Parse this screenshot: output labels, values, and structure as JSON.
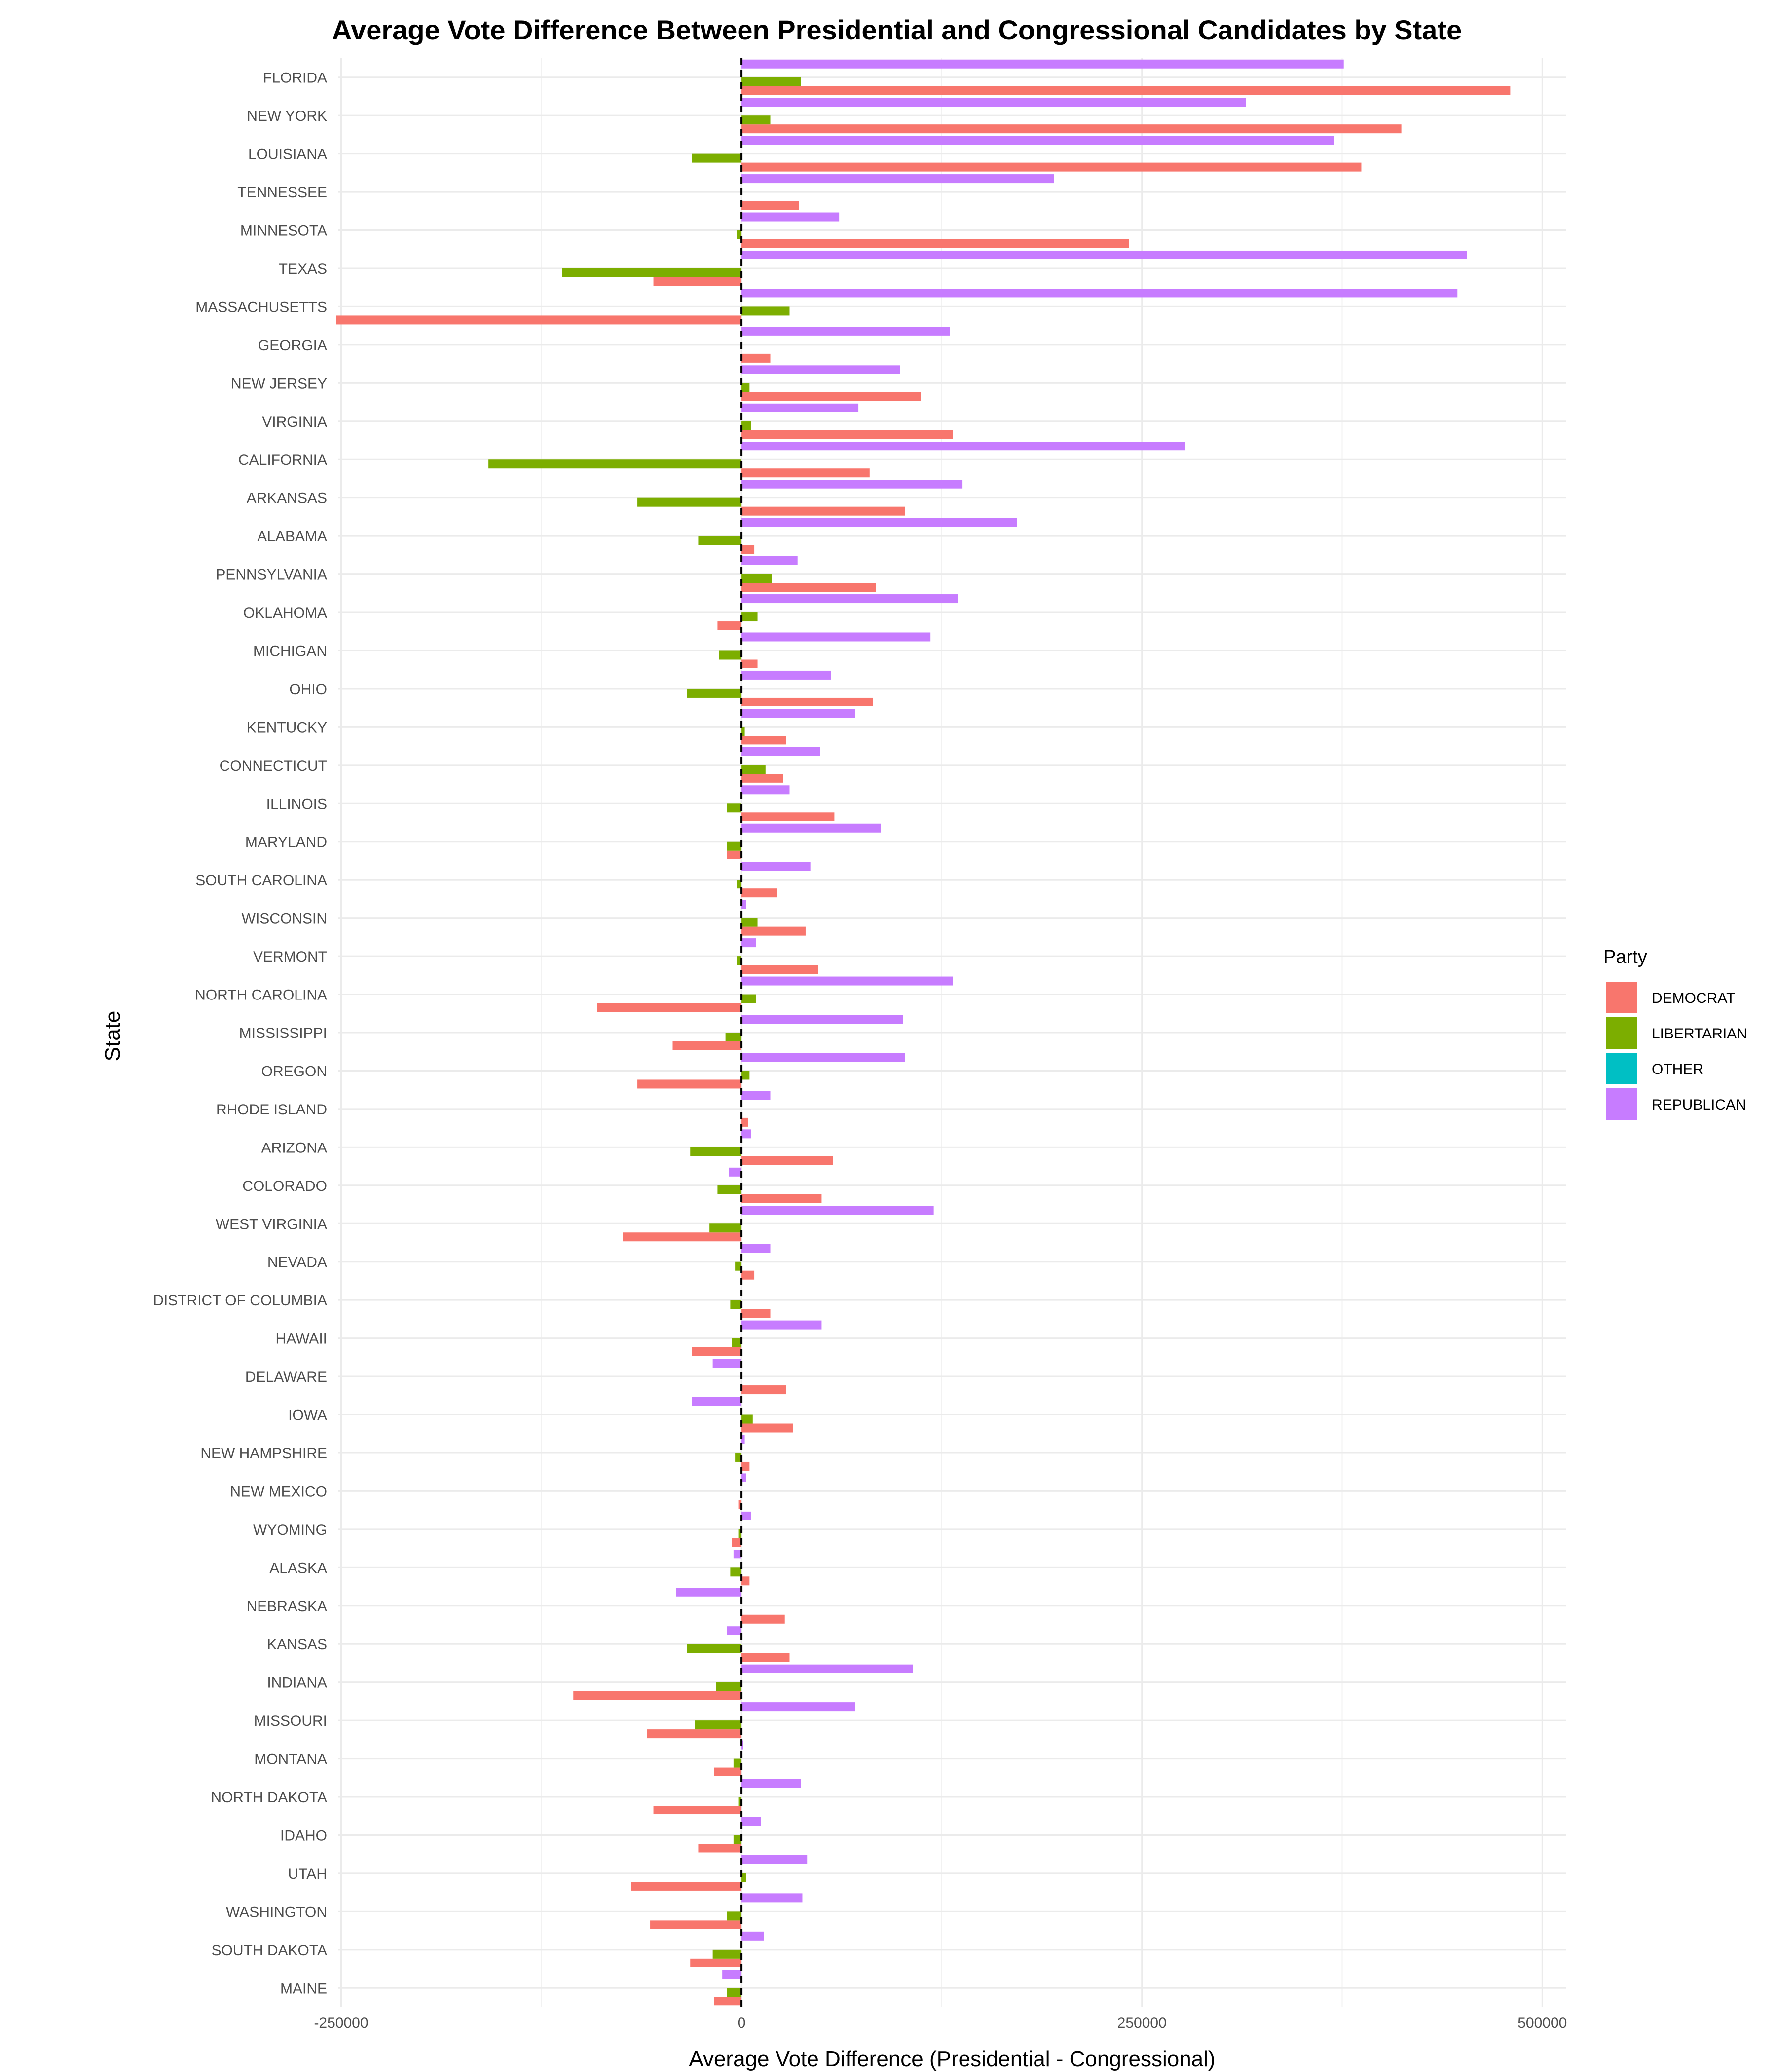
{
  "chart_data": {
    "type": "bar",
    "orientation": "horizontal",
    "title": "Average Vote Difference Between Presidential and Congressional Candidates by State",
    "xlabel": "Average Vote Difference (Presidential - Congressional)",
    "ylabel": "State",
    "xlim": [
      -252000,
      515000
    ],
    "x_ticks": [
      -250000,
      0,
      250000,
      500000
    ],
    "x_tick_labels": [
      "-250000",
      "0",
      "250000",
      "500000"
    ],
    "grid": true,
    "reference_line": {
      "x": 0,
      "style": "dashed"
    },
    "legend": {
      "title": "Party",
      "placement": "right"
    },
    "categories": [
      "FLORIDA",
      "NEW YORK",
      "LOUISIANA",
      "TENNESSEE",
      "MINNESOTA",
      "TEXAS",
      "MASSACHUSETTS",
      "GEORGIA",
      "NEW JERSEY",
      "VIRGINIA",
      "CALIFORNIA",
      "ARKANSAS",
      "ALABAMA",
      "PENNSYLVANIA",
      "OKLAHOMA",
      "MICHIGAN",
      "OHIO",
      "KENTUCKY",
      "CONNECTICUT",
      "ILLINOIS",
      "MARYLAND",
      "SOUTH CAROLINA",
      "WISCONSIN",
      "VERMONT",
      "NORTH CAROLINA",
      "MISSISSIPPI",
      "OREGON",
      "RHODE ISLAND",
      "ARIZONA",
      "COLORADO",
      "WEST VIRGINIA",
      "NEVADA",
      "DISTRICT OF COLUMBIA",
      "HAWAII",
      "DELAWARE",
      "IOWA",
      "NEW HAMPSHIRE",
      "NEW MEXICO",
      "WYOMING",
      "ALASKA",
      "NEBRASKA",
      "KANSAS",
      "INDIANA",
      "MISSOURI",
      "MONTANA",
      "NORTH DAKOTA",
      "IDAHO",
      "UTAH",
      "WASHINGTON",
      "SOUTH DAKOTA",
      "MAINE"
    ],
    "series": [
      {
        "name": "DEMOCRAT",
        "color": "#F8766D",
        "values": [
          480000,
          412000,
          387000,
          36000,
          242000,
          -55000,
          -253000,
          18000,
          112000,
          132000,
          80000,
          102000,
          8000,
          84000,
          -15000,
          10000,
          82000,
          28000,
          26000,
          58000,
          -9000,
          22000,
          40000,
          48000,
          -90000,
          -43000,
          -65000,
          4000,
          57000,
          50000,
          -74000,
          8000,
          18000,
          -31000,
          28000,
          32000,
          5000,
          -2000,
          -6000,
          5000,
          27000,
          30000,
          -105000,
          -59000,
          -17000,
          -55000,
          -27000,
          -69000,
          -57000,
          -32000,
          -17000
        ]
      },
      {
        "name": "LIBERTARIAN",
        "color": "#7CAE00",
        "values": [
          37000,
          18000,
          -31000,
          0,
          -3000,
          -112000,
          30000,
          0,
          5000,
          6000,
          -158000,
          -65000,
          -27000,
          19000,
          10000,
          -14000,
          -34000,
          2000,
          15000,
          -9000,
          -9000,
          -3000,
          10000,
          -3000,
          9000,
          -10000,
          5000,
          0,
          -32000,
          -15000,
          -20000,
          -4000,
          -7000,
          -6000,
          0,
          7000,
          -4000,
          0,
          -2000,
          -7000,
          0,
          -34000,
          -16000,
          -29000,
          -5000,
          -2000,
          -5000,
          3000,
          -9000,
          -18000,
          -9000
        ]
      },
      {
        "name": "OTHER",
        "color": "#00BFC4",
        "values": [
          0,
          0,
          0,
          0,
          0,
          0,
          0,
          0,
          0,
          0,
          0,
          0,
          0,
          0,
          0,
          0,
          0,
          0,
          0,
          0,
          0,
          0,
          0,
          0,
          0,
          0,
          0,
          0,
          0,
          0,
          0,
          0,
          0,
          0,
          0,
          0,
          0,
          0,
          0,
          0,
          0,
          0,
          0,
          0,
          0,
          0,
          0,
          0,
          0,
          0,
          0
        ]
      },
      {
        "name": "REPUBLICAN",
        "color": "#C77CFF",
        "values": [
          376000,
          315000,
          370000,
          195000,
          61000,
          453000,
          447000,
          130000,
          99000,
          73000,
          277000,
          138000,
          172000,
          35000,
          135000,
          118000,
          56000,
          71000,
          49000,
          30000,
          87000,
          43000,
          3000,
          9000,
          132000,
          101000,
          102000,
          18000,
          6000,
          -8000,
          120000,
          18000,
          0,
          50000,
          -18000,
          -31000,
          2000,
          3000,
          6000,
          -5000,
          -41000,
          -9000,
          107000,
          71000,
          1000,
          37000,
          12000,
          41000,
          38000,
          14000,
          -12000
        ]
      }
    ]
  }
}
